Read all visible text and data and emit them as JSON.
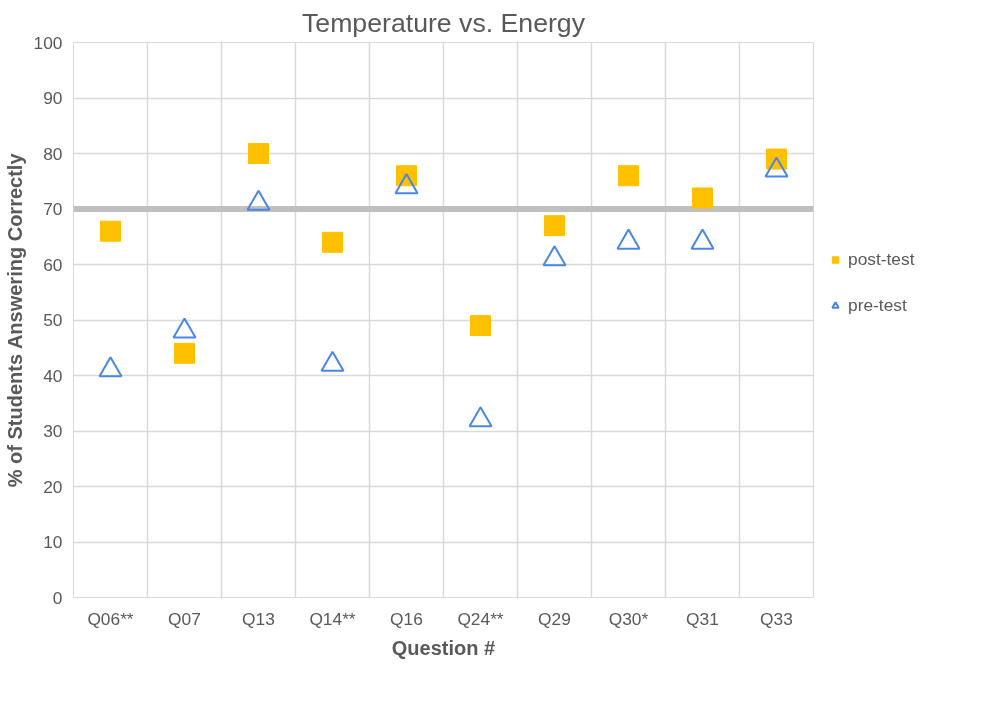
{
  "chart_data": {
    "type": "scatter",
    "title": "Temperature vs. Energy",
    "xlabel": "Question #",
    "ylabel": "% of Students Answering Correctly",
    "categories": [
      "Q06**",
      "Q07",
      "Q13",
      "Q14**",
      "Q16",
      "Q24**",
      "Q29",
      "Q30*",
      "Q31",
      "Q33"
    ],
    "series": [
      {
        "name": "post-test",
        "color": "#ffc000",
        "marker": "square",
        "values": [
          66,
          44,
          80,
          64,
          76,
          49,
          67,
          76,
          72,
          79
        ]
      },
      {
        "name": "pre-test",
        "color": "#4a86e8",
        "marker": "triangle",
        "values": [
          41,
          48,
          71,
          42,
          74,
          32,
          61,
          64,
          64,
          77
        ]
      }
    ],
    "ylim": [
      0,
      100
    ],
    "yticks": [
      0,
      10,
      20,
      30,
      40,
      50,
      60,
      70,
      80,
      90,
      100
    ],
    "grid": true,
    "legend": "right",
    "ref_lines": [
      {
        "axis": "y",
        "value": 70,
        "color": "#bfbfbf"
      }
    ]
  }
}
